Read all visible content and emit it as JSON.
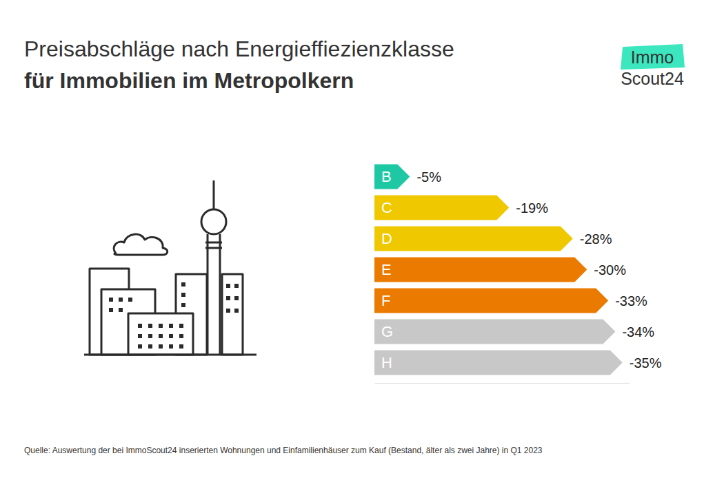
{
  "chart_data": {
    "type": "bar",
    "title": "Preisabschläge nach Energieffiezienzklasse",
    "subtitle": "für Immobilien im Metropolkern",
    "source": "Quelle: Auswertung der bei ImmoScout24 inserierten Wohnungen und Einfamilienhäuser zum Kauf  (Bestand, älter als zwei Jahre)  in Q1 2023",
    "logo": [
      "Immo",
      "Scout24"
    ],
    "orientation": "horizontal",
    "categories": [
      "B",
      "C",
      "D",
      "E",
      "F",
      "G",
      "H"
    ],
    "values": [
      -5,
      -19,
      -28,
      -30,
      -33,
      -34,
      -35
    ],
    "value_labels": [
      "-5%",
      "-19%",
      "-28%",
      "-30%",
      "-33%",
      "-34%",
      "-35%"
    ],
    "colors": [
      "#1ec8a5",
      "#f0c800",
      "#f0c800",
      "#eb7a00",
      "#eb7a00",
      "#c8c8c8",
      "#c8c8c8"
    ],
    "xlim": [
      0,
      -36
    ],
    "data_labels": true,
    "tick_labels": false
  }
}
